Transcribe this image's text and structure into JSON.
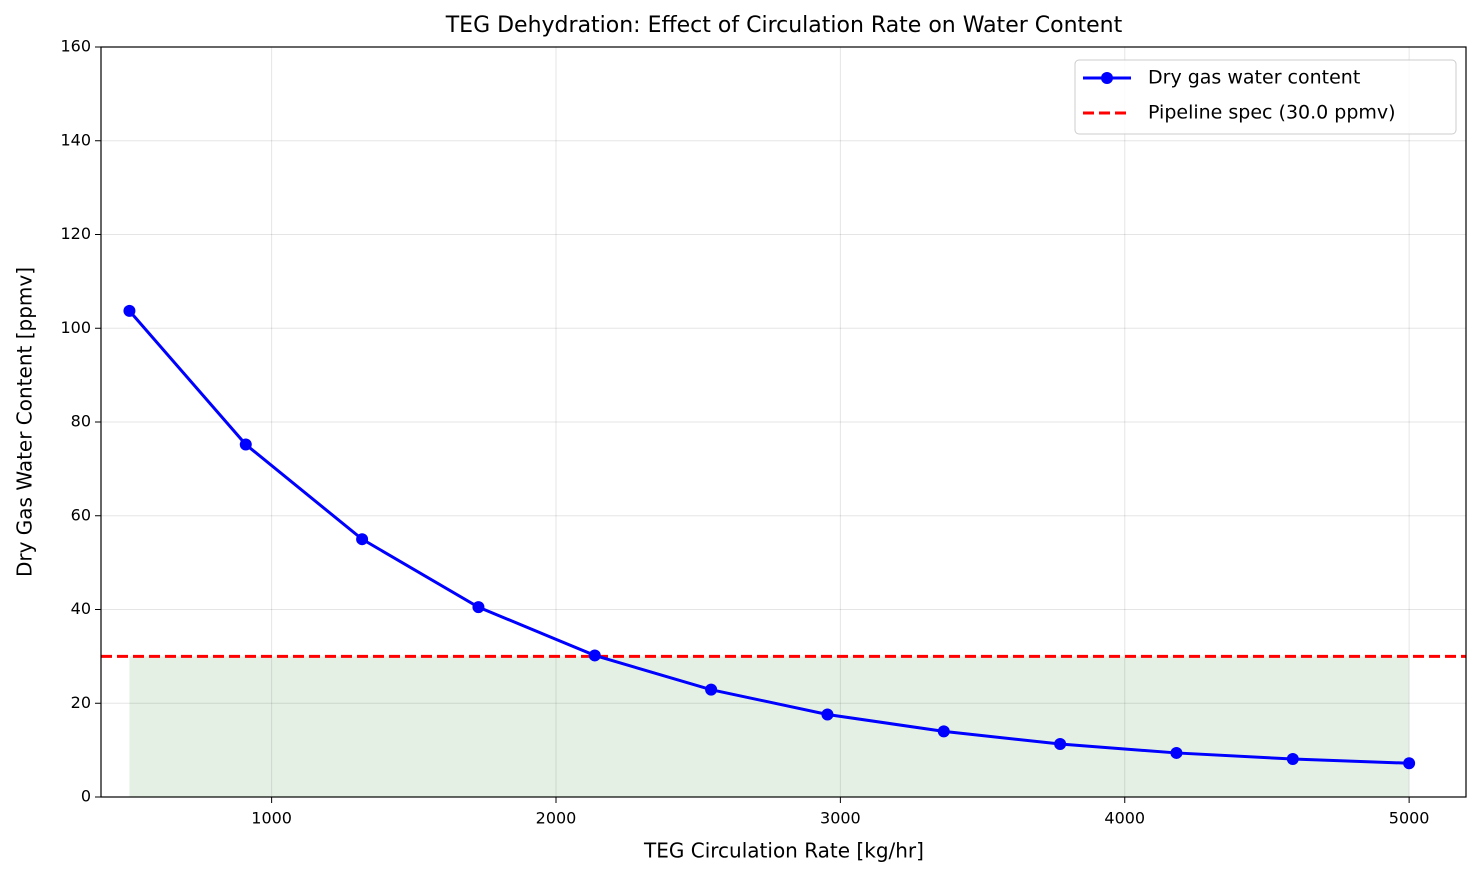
{
  "chart_data": {
    "type": "line",
    "title": "TEG Dehydration: Effect of Circulation Rate on Water Content",
    "xlabel": "TEG Circulation Rate [kg/hr]",
    "ylabel": "Dry Gas Water Content [ppmv]",
    "x": [
      500,
      909.09,
      1318.18,
      1727.27,
      2136.36,
      2545.45,
      2954.55,
      3363.64,
      3772.73,
      4181.82,
      4590.91,
      5000
    ],
    "series": [
      {
        "name": "Dry gas water content",
        "color": "#0000ff",
        "values": [
          103.7,
          75.2,
          55,
          40.5,
          30.2,
          22.9,
          17.6,
          14,
          11.3,
          9.4,
          8.1,
          7.2
        ]
      }
    ],
    "spec": {
      "name": "Pipeline spec (30.0 ppmv)",
      "value": 30,
      "color": "#ff0000",
      "fill_color": "#e4f0e4"
    },
    "xlim": [
      400,
      5200
    ],
    "xticks": [
      1000,
      2000,
      3000,
      4000,
      5000
    ],
    "ylim": [
      0,
      160
    ],
    "yticks": [
      0,
      20,
      40,
      60,
      80,
      100,
      120,
      140,
      160
    ],
    "grid": true,
    "legend": "upper right"
  }
}
